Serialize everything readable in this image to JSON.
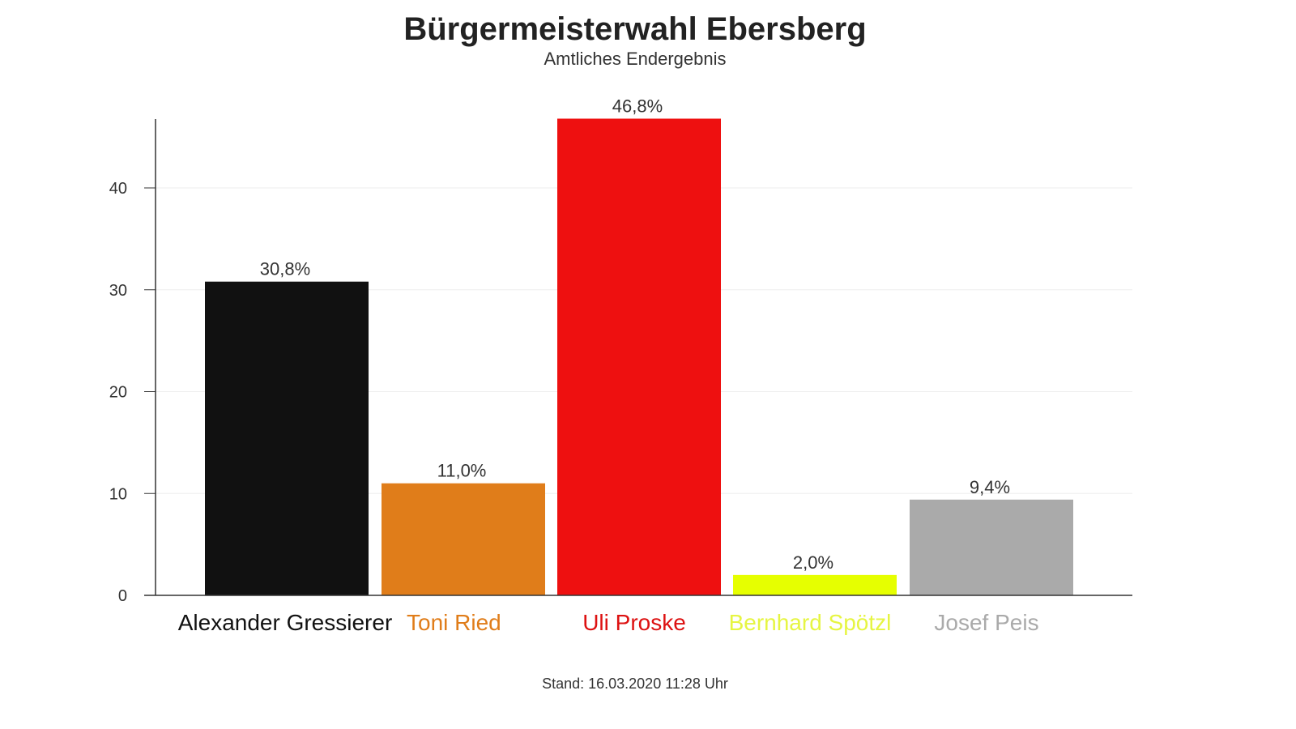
{
  "chart_data": {
    "type": "bar",
    "title": "Bürgermeisterwahl Ebersberg",
    "subtitle": "Amtliches Endergebnis",
    "footer": "Stand: 16.03.2020 11:28 Uhr",
    "categories": [
      "Alexander Gressierer",
      "Toni Ried",
      "Uli Proske",
      "Bernhard Spötzl",
      "Josef Peis"
    ],
    "values": [
      30.8,
      11.0,
      46.8,
      2.0,
      9.4
    ],
    "data_labels": [
      "30,8%",
      "11,0%",
      "46,8%",
      "2,0%",
      "9,4%"
    ],
    "colors": [
      "#111111",
      "#e07d1a",
      "#ee1010",
      "#e6ff00",
      "#aaaaaa"
    ],
    "label_colors": [
      "#111111",
      "#e07d1a",
      "#dd1111",
      "#e6f542",
      "#aaaaaa"
    ],
    "yticks": [
      0,
      10,
      20,
      30,
      40
    ],
    "ylim": [
      0,
      46.8
    ],
    "grid": true,
    "xlabel": "",
    "ylabel": ""
  }
}
